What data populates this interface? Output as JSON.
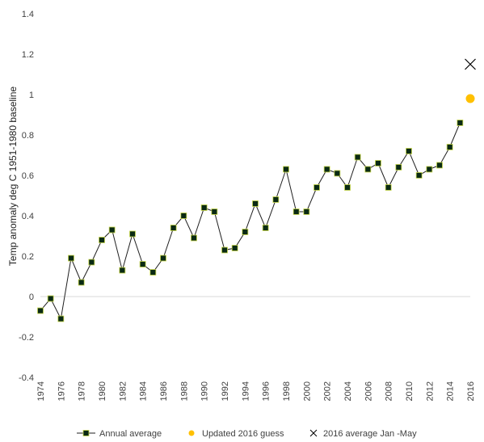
{
  "chart_data": {
    "type": "line",
    "title": "",
    "xlabel": "",
    "ylabel": "Temp anomaly deg C 1951-1980 baseline",
    "ylim": [
      -0.4,
      1.4
    ],
    "xlim": [
      1974,
      2016
    ],
    "x_ticks": [
      "1974",
      "1976",
      "1978",
      "1980",
      "1982",
      "1984",
      "1986",
      "1988",
      "1990",
      "1992",
      "1994",
      "1996",
      "1998",
      "2000",
      "2002",
      "2004",
      "2006",
      "2008",
      "2010",
      "2012",
      "2014",
      "2016"
    ],
    "y_ticks": [
      "-0.4",
      "-0.2",
      "0",
      "0.2",
      "0.4",
      "0.6",
      "0.8",
      "1",
      "1.2",
      "1.4"
    ],
    "grid": false,
    "legend_position": "bottom",
    "series": [
      {
        "name": "Annual average",
        "marker": "square",
        "color": "#1f1f1f",
        "marker_fill": "#0a2a14",
        "marker_edge": "#c8d84a",
        "x": [
          1974,
          1975,
          1976,
          1977,
          1978,
          1979,
          1980,
          1981,
          1982,
          1983,
          1984,
          1985,
          1986,
          1987,
          1988,
          1989,
          1990,
          1991,
          1992,
          1993,
          1994,
          1995,
          1996,
          1997,
          1998,
          1999,
          2000,
          2001,
          2002,
          2003,
          2004,
          2005,
          2006,
          2007,
          2008,
          2009,
          2010,
          2011,
          2012,
          2013,
          2014,
          2015
        ],
        "y": [
          -0.07,
          -0.01,
          -0.11,
          0.19,
          0.07,
          0.17,
          0.28,
          0.33,
          0.13,
          0.31,
          0.16,
          0.12,
          0.19,
          0.34,
          0.4,
          0.29,
          0.44,
          0.42,
          0.23,
          0.24,
          0.32,
          0.46,
          0.34,
          0.48,
          0.63,
          0.42,
          0.42,
          0.54,
          0.63,
          0.61,
          0.54,
          0.69,
          0.63,
          0.66,
          0.54,
          0.64,
          0.72,
          0.6,
          0.63,
          0.65,
          0.74,
          0.86
        ]
      },
      {
        "name": "Updated 2016 guess",
        "marker": "circle",
        "color": "#ffc000",
        "x": [
          2016
        ],
        "y": [
          0.98
        ]
      },
      {
        "name": "2016 average Jan -May",
        "marker": "x",
        "color": "#000000",
        "x": [
          2016
        ],
        "y": [
          1.15
        ]
      }
    ]
  }
}
